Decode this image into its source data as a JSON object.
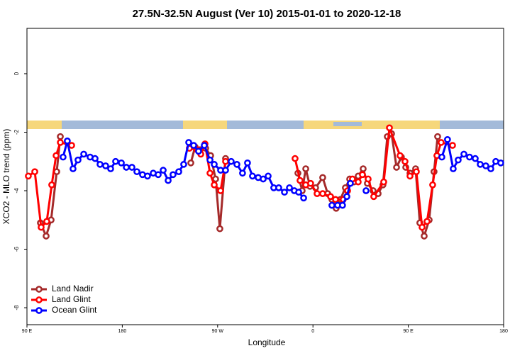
{
  "chart_data": {
    "type": "line",
    "title": "27.5N-32.5N August (Ver 10)   2015-01-01 to 2020-12-18",
    "x_label": "Longitude",
    "y_label": "XCO2 - MLO trend (ppm)",
    "xlim": [
      90,
      540
    ],
    "xticks": [
      {
        "value": 90,
        "label": "90 E"
      },
      {
        "value": 180,
        "label": "180"
      },
      {
        "value": 270,
        "label": "90 W"
      },
      {
        "value": 360,
        "label": "0"
      },
      {
        "value": 450,
        "label": "90 E"
      },
      {
        "value": 540,
        "label": "180"
      }
    ],
    "ylim": [
      -8.58,
      1.55
    ],
    "yticks": [
      0,
      -2,
      -4,
      -6,
      -8
    ],
    "legend": "bottomleft",
    "series": [
      {
        "name": "Land Nadir",
        "color": "#a52a2a",
        "x": [
          102.7,
          108.1,
          112.8,
          118.1,
          121.5,
          null,
          244.7,
          248.7,
          253.4,
          258.7,
          263.4,
          268.1,
          272.1,
          277.5,
          null,
          345.8,
          349.8,
          353.2,
          357.2,
          362.5,
          369.2,
          373.9,
          377.9,
          381.9,
          385.9,
          390.6,
          394.7,
          398.7,
          402.7,
          407.4,
          411.4,
          416.8,
          421.5,
          426.1,
          430.2,
          434.2,
          438.9,
          443.5,
          447.6,
          451.6,
          456.9,
          460.9,
          465.0,
          469.7,
          474.3,
          477.7
        ],
        "values": [
          -5.1,
          -5.55,
          -5.0,
          -3.35,
          -2.15,
          null,
          -3.05,
          -2.5,
          -2.6,
          -2.55,
          -2.8,
          -3.6,
          -5.3,
          -2.9,
          null,
          -3.4,
          -4.0,
          -3.25,
          -3.85,
          -3.9,
          -3.55,
          -4.1,
          -4.3,
          -4.6,
          -4.3,
          -3.9,
          -3.6,
          -3.7,
          -3.5,
          -3.25,
          -3.75,
          -4.0,
          -4.1,
          -3.8,
          -2.15,
          -2.05,
          -3.2,
          -2.85,
          -3.2,
          -3.4,
          -3.25,
          -5.1,
          -5.55,
          -5.0,
          -3.35,
          -2.15
        ]
      },
      {
        "name": "Land Glint",
        "color": "#ff0000",
        "x": [
          91.3,
          97.4,
          103.4,
          108.7,
          113.4,
          117.5,
          121.5,
          132.2,
          null,
          243.3,
          250.7,
          254.1,
          258.1,
          262.8,
          266.8,
          272.8,
          277.5,
          null,
          343.1,
          347.8,
          353.2,
          357.8,
          363.9,
          369.2,
          376.6,
          381.3,
          388.6,
          392.7,
          397.3,
          402.7,
          406.7,
          412.1,
          417.4,
          426.8,
          432.2,
          442.2,
          446.9,
          451.6,
          457.6,
          463.0,
          467.7,
          473.0,
          477.0,
          481.0,
          491.8
        ],
        "values": [
          -3.5,
          -3.35,
          -5.25,
          -5.05,
          -3.8,
          -2.8,
          -2.35,
          -2.45,
          null,
          -2.55,
          -2.6,
          -2.75,
          -2.4,
          -3.4,
          -3.8,
          -4.0,
          -3.0,
          null,
          -2.9,
          -3.65,
          -3.8,
          -3.75,
          -4.1,
          -4.1,
          -4.2,
          -4.3,
          -4.3,
          -4.0,
          -3.6,
          -3.7,
          -3.45,
          -3.6,
          -4.2,
          -3.7,
          -1.85,
          -2.8,
          -3.0,
          -3.5,
          -3.35,
          -5.25,
          -5.05,
          -3.8,
          -2.8,
          -2.35,
          -2.45
        ]
      },
      {
        "name": "Ocean Glint",
        "color": "#0000ff",
        "x": [
          124.1,
          128.1,
          133.5,
          138.2,
          143.6,
          149.6,
          154.3,
          159.0,
          164.3,
          169.0,
          173.7,
          179.1,
          183.8,
          189.1,
          193.8,
          199.1,
          203.8,
          209.2,
          213.9,
          218.6,
          223.3,
          227.9,
          233.3,
          238.0,
          242.7,
          247.4,
          252.0,
          257.4,
          262.8,
          266.8,
          272.8,
          277.5,
          282.8,
          288.2,
          293.5,
          298.2,
          302.9,
          308.3,
          313.0,
          317.7,
          323.0,
          327.7,
          333.1,
          337.8,
          342.4,
          346.5,
          351.2,
          null,
          377.9,
          383.3,
          387.9,
          392.0,
          395.3,
          null,
          410.1,
          null,
          481.7,
          487.0,
          492.4,
          497.1,
          502.5,
          507.8,
          513.2,
          517.9,
          523.2,
          527.9,
          532.6,
          537.3
        ],
        "values": [
          -2.85,
          -2.3,
          -3.25,
          -2.95,
          -2.75,
          -2.85,
          -2.9,
          -3.1,
          -3.15,
          -3.25,
          -3.0,
          -3.05,
          -3.2,
          -3.2,
          -3.35,
          -3.45,
          -3.5,
          -3.4,
          -3.45,
          -3.3,
          -3.65,
          -3.45,
          -3.35,
          -3.1,
          -2.35,
          -2.45,
          -2.65,
          -2.45,
          -2.95,
          -3.1,
          -3.3,
          -3.3,
          -3.0,
          -3.1,
          -3.4,
          -3.05,
          -3.5,
          -3.55,
          -3.6,
          -3.5,
          -3.9,
          -3.9,
          -4.05,
          -3.9,
          -4.0,
          -4.05,
          -4.25,
          null,
          -4.5,
          -4.5,
          -4.5,
          -4.2,
          -3.75,
          null,
          -4.0,
          null,
          -2.85,
          -2.25,
          -3.25,
          -2.95,
          -2.75,
          -2.85,
          -2.9,
          -3.1,
          -3.15,
          -3.25,
          -3.0,
          -3.05
        ]
      }
    ]
  }
}
